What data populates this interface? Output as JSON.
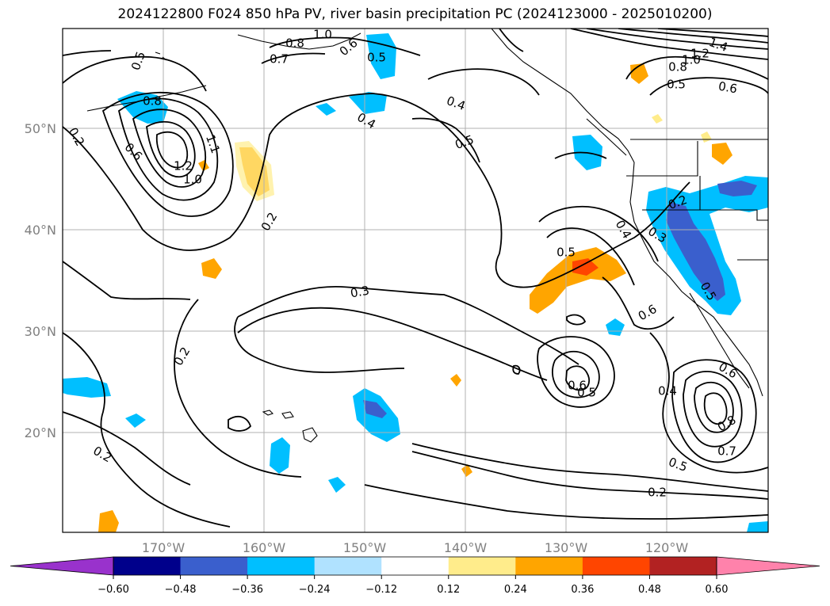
{
  "title": "2024122800 F024 850 hPa PV, river basin precipitation PC (2024123000 - 2025010200)",
  "map": {
    "lon_labels": [
      "170°W",
      "160°W",
      "150°W",
      "140°W",
      "130°W",
      "120°W"
    ],
    "lat_labels": [
      "50°N",
      "40°N",
      "30°N",
      "20°N"
    ],
    "contour_labels": [
      "0.5",
      "0.8",
      "0.2",
      "0.6",
      "1.2",
      "1.0",
      "1.1",
      "0.2",
      "0.7",
      "0.8",
      "1.0",
      "0.6",
      "0.5",
      "0.4",
      "0.4",
      "0.5",
      "1.4",
      "1.2",
      "1.0",
      "0.8",
      "0.5",
      "0.6",
      "0.2",
      "0.3",
      "0.4",
      "0.5",
      "0.5",
      "0.3",
      "0.6",
      "0.2",
      "0.6",
      "0.5",
      "0.4",
      "0.6",
      "0.8",
      "0.7",
      "0.5",
      "0.2",
      "0.2"
    ]
  },
  "colorbar": {
    "ticks": [
      "−0.60",
      "−0.48",
      "−0.36",
      "−0.24",
      "−0.12",
      "0.12",
      "0.24",
      "0.36",
      "0.48",
      "0.60"
    ],
    "colors": [
      "#9932cc",
      "#00008b",
      "#3a5fcd",
      "#00bfff",
      "#b0e2ff",
      "#ffffff",
      "#ffec8b",
      "#ffa500",
      "#ff4500",
      "#b22222",
      "#ff82ab"
    ]
  },
  "colors": {
    "contour": "#000000",
    "coast": "#000000",
    "grid": "#b0b0b0"
  }
}
